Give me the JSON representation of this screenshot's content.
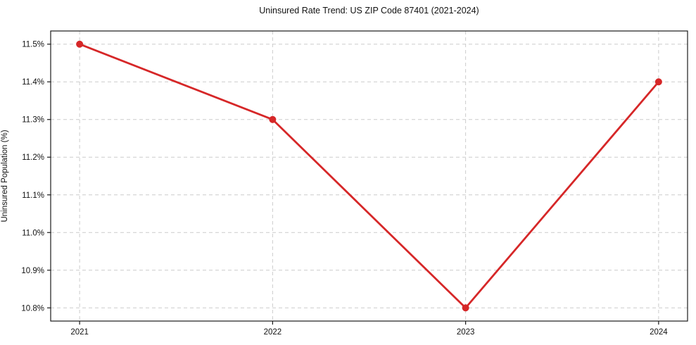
{
  "chart_data": {
    "type": "line",
    "title": "Uninsured Rate Trend: US ZIP Code 87401 (2021-2024)",
    "xlabel": "",
    "ylabel": "Uninsured Population (%)",
    "x": [
      2021,
      2022,
      2023,
      2024
    ],
    "x_tick_labels": [
      "2021",
      "2022",
      "2023",
      "2024"
    ],
    "series": [
      {
        "name": "Uninsured Rate",
        "values": [
          11.5,
          11.3,
          10.8,
          11.4
        ],
        "color": "#d62728"
      }
    ],
    "y_ticks": [
      {
        "value": 10.8,
        "label": "10.8%"
      },
      {
        "value": 10.9,
        "label": "10.9%"
      },
      {
        "value": 11.0,
        "label": "11.0%"
      },
      {
        "value": 11.1,
        "label": "11.1%"
      },
      {
        "value": 11.2,
        "label": "11.2%"
      },
      {
        "value": 11.3,
        "label": "11.3%"
      },
      {
        "value": 11.4,
        "label": "11.4%"
      },
      {
        "value": 11.5,
        "label": "11.5%"
      }
    ],
    "xlim": [
      2020.85,
      2024.15
    ],
    "ylim": [
      10.765,
      11.535
    ],
    "grid": "dashed",
    "grid_color": "#cccccc",
    "spine_color": "#1a1a1a",
    "legend_position": "none"
  }
}
